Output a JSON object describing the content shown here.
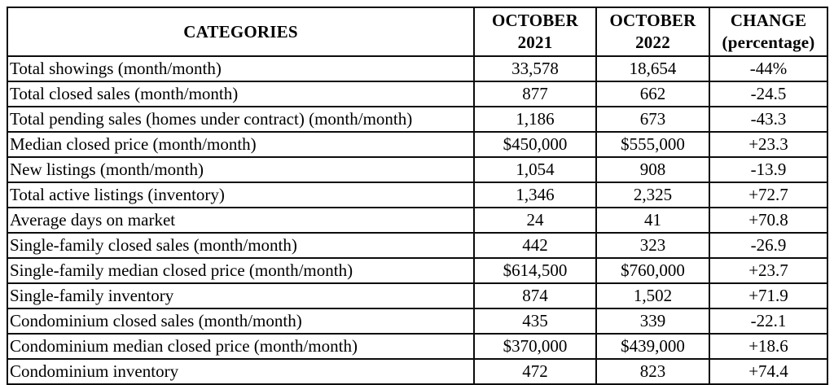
{
  "table": {
    "columns": [
      {
        "label": "CATEGORIES"
      },
      {
        "label": "OCTOBER\n2021"
      },
      {
        "label": "OCTOBER\n2022"
      },
      {
        "label": "CHANGE\n(percentage)"
      }
    ],
    "rows": [
      {
        "category": "Total showings (month/month)",
        "oct2021": "33,578",
        "oct2022": "18,654",
        "change": "-44%"
      },
      {
        "category": "Total closed sales (month/month)",
        "oct2021": "877",
        "oct2022": "662",
        "change": "-24.5"
      },
      {
        "category": "Total pending sales (homes under contract) (month/month)",
        "oct2021": "1,186",
        "oct2022": "673",
        "change": "-43.3"
      },
      {
        "category": "Median closed price (month/month)",
        "oct2021": "$450,000",
        "oct2022": "$555,000",
        "change": "+23.3"
      },
      {
        "category": "New listings (month/month)",
        "oct2021": "1,054",
        "oct2022": "908",
        "change": "-13.9"
      },
      {
        "category": "Total active listings (inventory)",
        "oct2021": "1,346",
        "oct2022": "2,325",
        "change": "+72.7"
      },
      {
        "category": "Average days on market",
        "oct2021": "24",
        "oct2022": "41",
        "change": "+70.8"
      },
      {
        "category": "Single-family closed sales (month/month)",
        "oct2021": "442",
        "oct2022": "323",
        "change": "-26.9"
      },
      {
        "category": "Single-family median closed price (month/month)",
        "oct2021": "$614,500",
        "oct2022": "$760,000",
        "change": "+23.7"
      },
      {
        "category": "Single-family inventory",
        "oct2021": "874",
        "oct2022": "1,502",
        "change": "+71.9"
      },
      {
        "category": "Condominium closed sales (month/month)",
        "oct2021": "435",
        "oct2022": "339",
        "change": "-22.1"
      },
      {
        "category": "Condominium median closed price (month/month)",
        "oct2021": "$370,000",
        "oct2022": "$439,000",
        "change": "+18.6"
      },
      {
        "category": "Condominium inventory",
        "oct2021": "472",
        "oct2022": "823",
        "change": "+74.4"
      }
    ]
  },
  "chart_data": {
    "type": "table",
    "title": "",
    "columns": [
      "CATEGORIES",
      "OCTOBER 2021",
      "OCTOBER 2022",
      "CHANGE (percentage)"
    ],
    "rows": [
      [
        "Total showings (month/month)",
        "33,578",
        "18,654",
        "-44%"
      ],
      [
        "Total closed sales (month/month)",
        "877",
        "662",
        "-24.5"
      ],
      [
        "Total pending sales (homes under contract) (month/month)",
        "1,186",
        "673",
        "-43.3"
      ],
      [
        "Median closed price (month/month)",
        "$450,000",
        "$555,000",
        "+23.3"
      ],
      [
        "New listings (month/month)",
        "1,054",
        "908",
        "-13.9"
      ],
      [
        "Total active listings (inventory)",
        "1,346",
        "2,325",
        "+72.7"
      ],
      [
        "Average days on market",
        "24",
        "41",
        "+70.8"
      ],
      [
        "Single-family closed sales (month/month)",
        "442",
        "323",
        "-26.9"
      ],
      [
        "Single-family median closed price (month/month)",
        "$614,500",
        "$760,000",
        "+23.7"
      ],
      [
        "Single-family inventory",
        "874",
        "1,502",
        "+71.9"
      ],
      [
        "Condominium closed sales (month/month)",
        "435",
        "339",
        "-22.1"
      ],
      [
        "Condominium median closed price (month/month)",
        "$370,000",
        "$439,000",
        "+18.6"
      ],
      [
        "Condominium inventory",
        "472",
        "823",
        "+74.4"
      ]
    ]
  },
  "colors": {
    "border": "#0c0c0c",
    "text": "#000000",
    "background": "#ffffff"
  }
}
